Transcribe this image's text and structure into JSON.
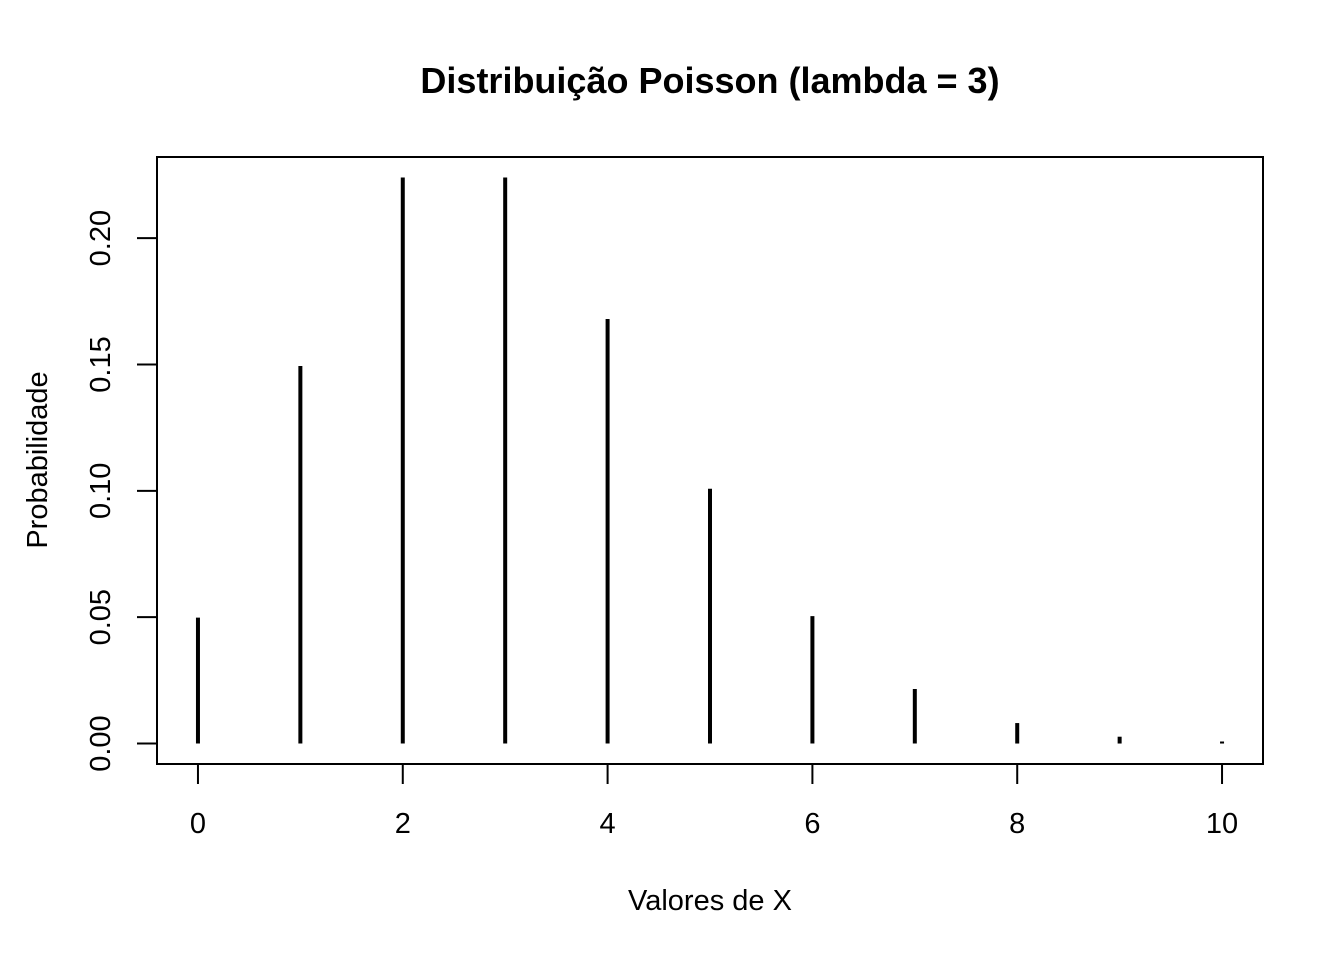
{
  "chart_data": {
    "type": "bar",
    "title": "Distribuição Poisson (lambda = 3)",
    "xlabel": "Valores de X",
    "ylabel": "Probabilidade",
    "x": [
      0,
      1,
      2,
      3,
      4,
      5,
      6,
      7,
      8,
      9,
      10
    ],
    "values": [
      0.0498,
      0.1494,
      0.224,
      0.224,
      0.168,
      0.1008,
      0.0504,
      0.0216,
      0.0081,
      0.0027,
      0.0008
    ],
    "xlim": [
      -0.4,
      10.4
    ],
    "ylim": [
      -0.0081,
      0.2321
    ],
    "x_ticks": [
      "0",
      "2",
      "4",
      "6",
      "8",
      "10"
    ],
    "y_ticks": [
      "0.00",
      "0.05",
      "0.10",
      "0.15",
      "0.20"
    ],
    "grid": false,
    "legend": "none",
    "color": "#000000"
  }
}
